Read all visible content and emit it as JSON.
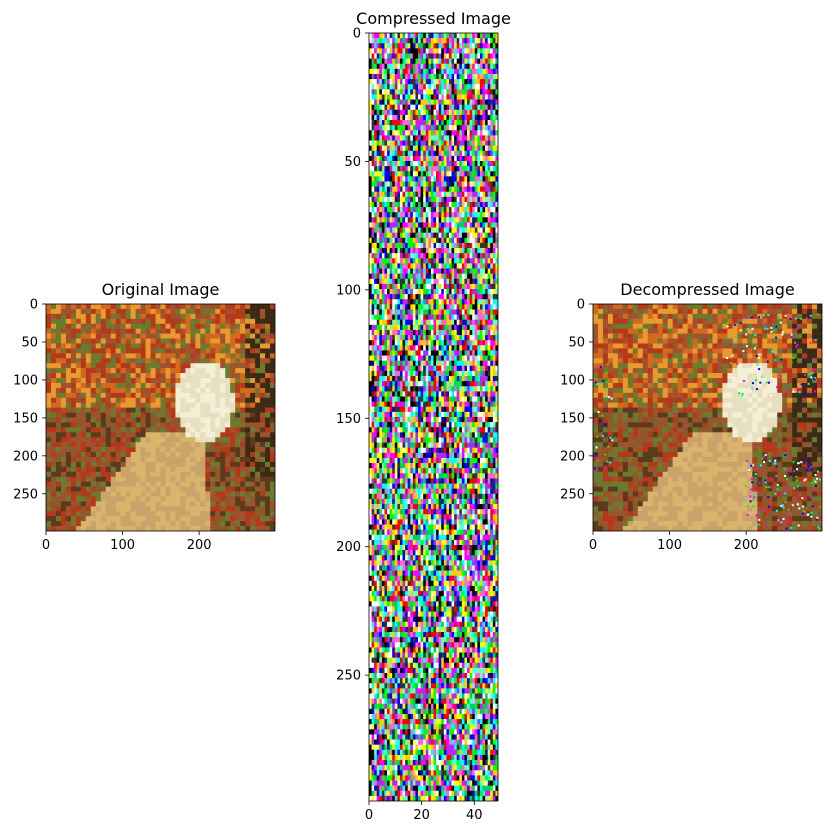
{
  "chart_data": [
    {
      "type": "image",
      "title": "Original Image",
      "xlim": [
        0,
        299
      ],
      "ylim": [
        299,
        0
      ],
      "xticks": [
        0,
        100,
        200
      ],
      "yticks": [
        0,
        50,
        100,
        150,
        200,
        250
      ],
      "palette": [
        "#b5381a",
        "#d2691e",
        "#e89a2e",
        "#8a5a2b",
        "#5b3a1e",
        "#c9a36a",
        "#e8dfc0",
        "#f4f0d8",
        "#6b7a2e",
        "#3d2a14",
        "#a0522d",
        "#d9b46a"
      ]
    },
    {
      "type": "image",
      "title": "Compressed Image",
      "xlim": [
        0,
        49
      ],
      "ylim": [
        299,
        0
      ],
      "xticks": [
        0,
        20,
        40
      ],
      "yticks": [
        0,
        50,
        100,
        150,
        200,
        250
      ],
      "palette": [
        "#ff00ff",
        "#00ffff",
        "#ffff00",
        "#ff0000",
        "#00ff00",
        "#0000ff",
        "#000000",
        "#ffffff",
        "#ff66cc",
        "#66ffcc",
        "#9933ff",
        "#ffcc00",
        "#333333",
        "#00cc66"
      ]
    },
    {
      "type": "image",
      "title": "Decompressed Image",
      "xlim": [
        0,
        299
      ],
      "ylim": [
        299,
        0
      ],
      "xticks": [
        0,
        100,
        200
      ],
      "yticks": [
        0,
        50,
        100,
        150,
        200,
        250
      ],
      "palette": [
        "#b5381a",
        "#d2691e",
        "#e89a2e",
        "#8a5a2b",
        "#5b3a1e",
        "#c9a36a",
        "#e8dfc0",
        "#f4f0d8",
        "#6b7a2e",
        "#3d2a14",
        "#a0522d",
        "#d9b46a"
      ],
      "artifact_palette": [
        "#00ffff",
        "#0000ff",
        "#00ff00",
        "#ff00ff",
        "#ffffff"
      ]
    }
  ]
}
